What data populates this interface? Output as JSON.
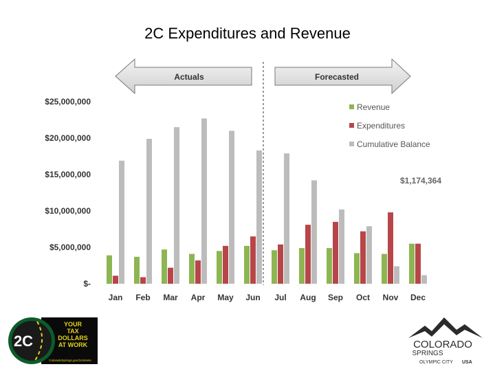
{
  "title": "2C Expenditures and Revenue",
  "banners": {
    "actuals": "Actuals",
    "forecasted": "Forecasted"
  },
  "annotation": "$1,174,364",
  "colors": {
    "revenue": "#8db552",
    "expenditures": "#b7464a",
    "balance": "#bcbcbc"
  },
  "chart_data": {
    "type": "bar",
    "title": "2C Expenditures and Revenue",
    "categories": [
      "Jan",
      "Feb",
      "Mar",
      "Apr",
      "May",
      "Jun",
      "Jul",
      "Aug",
      "Sep",
      "Oct",
      "Nov",
      "Dec"
    ],
    "ylim": [
      0,
      25000000
    ],
    "yticks": [
      0,
      5000000,
      10000000,
      15000000,
      20000000,
      25000000
    ],
    "ytick_labels": [
      "$-",
      "$5,000,000",
      "$10,000,000",
      "$15,000,000",
      "$20,000,000",
      "$25,000,000"
    ],
    "grid": false,
    "legend": "top-right",
    "divider_between": [
      "Jun",
      "Jul"
    ],
    "series": [
      {
        "name": "Revenue",
        "color": "#8db552",
        "values": [
          3900000,
          3700000,
          4700000,
          4100000,
          4500000,
          5200000,
          4600000,
          4900000,
          4900000,
          4200000,
          4100000,
          5500000
        ]
      },
      {
        "name": "Expenditures",
        "color": "#b7464a",
        "values": [
          1100000,
          900000,
          2200000,
          3200000,
          5200000,
          6500000,
          5400000,
          8100000,
          8500000,
          7200000,
          9800000,
          5500000
        ]
      },
      {
        "name": "Cumulative Balance",
        "color": "#bcbcbc",
        "values": [
          16900000,
          19900000,
          21500000,
          22700000,
          21000000,
          18300000,
          17900000,
          14200000,
          10200000,
          7900000,
          2400000,
          1174364
        ]
      }
    ]
  },
  "logos": {
    "left": {
      "badge": "2C",
      "lines": [
        "YOUR",
        "TAX",
        "DOLLARS",
        "AT WORK"
      ],
      "tagline": "ColoradoSprings.gov/2cstreets"
    },
    "right": {
      "lines": [
        "COLORADO",
        "SPRINGS"
      ],
      "tagline_a": "OLYMPIC CITY",
      "tagline_b": "USA"
    }
  }
}
